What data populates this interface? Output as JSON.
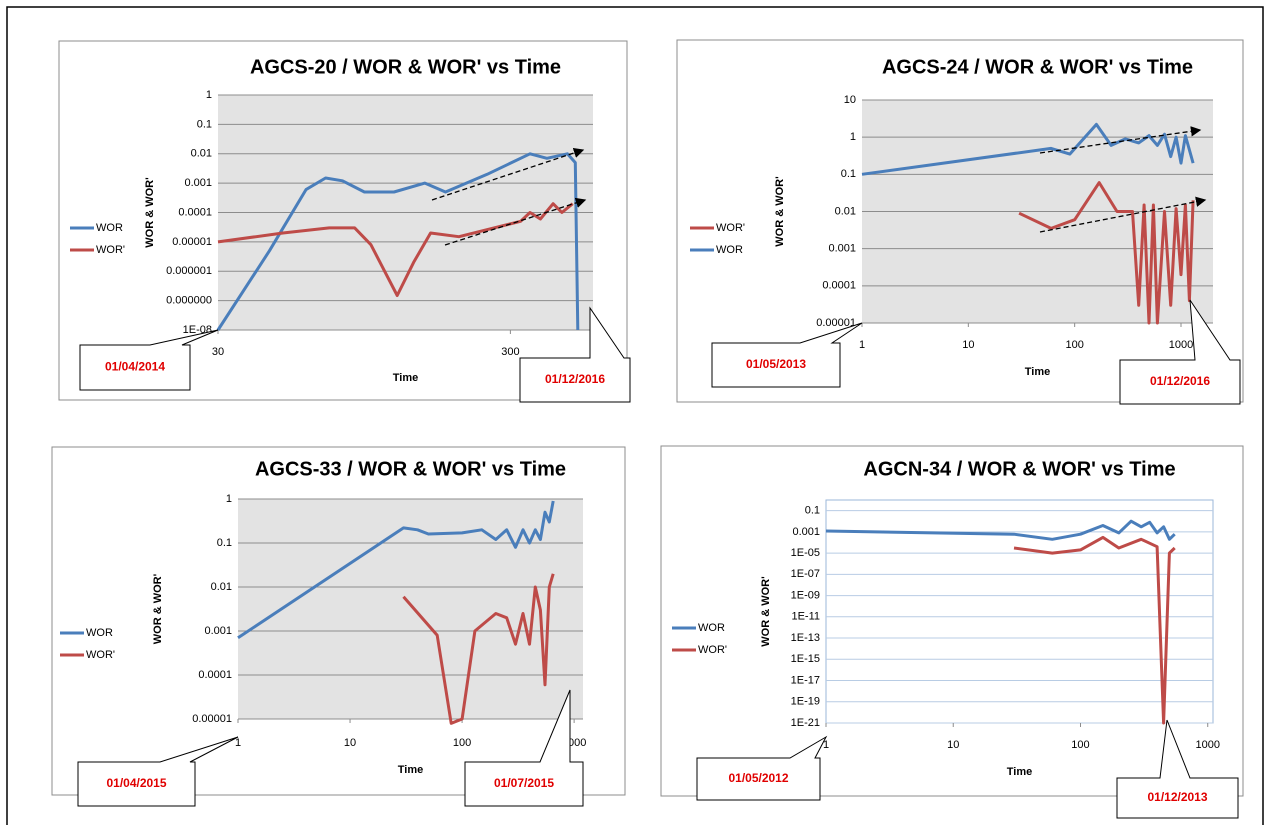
{
  "chart_data": [
    {
      "type": "line",
      "title": "AGCS-20 / WOR & WOR' vs Time",
      "x_label": "Time",
      "y_label": "WOR & WOR'",
      "xscale": "log",
      "yscale": "log",
      "grid": true,
      "xlim": [
        30,
        575
      ],
      "xticks": [
        30,
        300
      ],
      "ylim": [
        1e-08,
        1
      ],
      "yticks": [
        1,
        0.1,
        0.01,
        0.001,
        0.0001,
        1e-05,
        1e-06,
        {
          "value": 1e-07,
          "label": "0.000000"
        },
        {
          "value": 1e-08,
          "label": "1E-08"
        }
      ],
      "series": [
        {
          "name": "WOR",
          "color": "#4a7ebb",
          "x": [
            30,
            45,
            60,
            70,
            80,
            95,
            120,
            153,
            180,
            250,
            350,
            400,
            470,
            500,
            510
          ],
          "values": [
            1e-08,
            5e-06,
            0.0006,
            0.0015,
            0.0012,
            0.0005,
            0.0005,
            0.001,
            0.0005,
            0.002,
            0.01,
            0.007,
            0.01,
            0.005,
            1e-08
          ]
        },
        {
          "name": "WOR'",
          "color": "#be4b48",
          "x": [
            30,
            50,
            72,
            88,
            100,
            123,
            140,
            160,
            200,
            325,
            350,
            380,
            420,
            450,
            490
          ],
          "values": [
            1e-05,
            2e-05,
            3e-05,
            3e-05,
            8e-06,
            1.5e-07,
            2e-06,
            2e-05,
            1.5e-05,
            5e-05,
            0.0001,
            6e-05,
            0.0002,
            0.0001,
            0.0002
          ]
        }
      ],
      "annotations": [
        "01/04/2014",
        "01/12/2016"
      ]
    },
    {
      "type": "line",
      "title": "AGCS-24 / WOR & WOR' vs Time",
      "x_label": "Time",
      "y_label": "WOR & WOR'",
      "xscale": "log",
      "yscale": "log",
      "grid": true,
      "xlim": [
        1,
        2000
      ],
      "xticks": [
        1,
        10,
        100,
        1000
      ],
      "ylim": [
        1e-05,
        10
      ],
      "yticks": [
        10,
        1,
        0.1,
        0.01,
        0.001,
        0.0001,
        1e-05
      ],
      "series": [
        {
          "name": "WOR'",
          "color": "#be4b48",
          "x": [
            30,
            60,
            100,
            170,
            250,
            350,
            400,
            450,
            500,
            550,
            600,
            700,
            800,
            900,
            1000,
            1100,
            1200,
            1300
          ],
          "values": [
            0.009,
            0.0035,
            0.006,
            0.06,
            0.01,
            0.01,
            3e-05,
            0.015,
            1e-05,
            0.015,
            1e-05,
            0.01,
            3e-05,
            0.012,
            0.0002,
            0.015,
            4e-05,
            0.02
          ]
        },
        {
          "name": "WOR",
          "color": "#4a7ebb",
          "x": [
            1,
            60,
            90,
            160,
            220,
            300,
            400,
            500,
            600,
            700,
            800,
            900,
            1000,
            1100,
            1300
          ],
          "values": [
            0.1,
            0.5,
            0.35,
            2.2,
            0.6,
            0.9,
            0.7,
            1.1,
            0.6,
            1.2,
            0.3,
            1,
            0.2,
            1.1,
            0.2
          ]
        }
      ],
      "annotations": [
        "01/05/2013",
        "01/12/2016"
      ]
    },
    {
      "type": "line",
      "title": "AGCS-33 / WOR & WOR' vs Time",
      "x_label": "Time",
      "y_label": "WOR & WOR'",
      "xscale": "log",
      "yscale": "log",
      "grid": true,
      "xlim": [
        1,
        1200
      ],
      "xticks": [
        1,
        10,
        100,
        1000
      ],
      "ylim": [
        1e-05,
        1
      ],
      "yticks": [
        1,
        0.1,
        0.01,
        0.001,
        0.0001,
        1e-05
      ],
      "series": [
        {
          "name": "WOR",
          "color": "#4a7ebb",
          "x": [
            1,
            30,
            40,
            50,
            100,
            150,
            200,
            250,
            300,
            350,
            400,
            450,
            500,
            550,
            600,
            650
          ],
          "values": [
            0.0007,
            0.22,
            0.2,
            0.16,
            0.17,
            0.2,
            0.12,
            0.2,
            0.08,
            0.2,
            0.1,
            0.2,
            0.12,
            0.5,
            0.3,
            0.9
          ]
        },
        {
          "name": "WOR'",
          "color": "#be4b48",
          "x": [
            30,
            60,
            80,
            100,
            130,
            200,
            250,
            300,
            350,
            400,
            450,
            500,
            550,
            600,
            650
          ],
          "values": [
            0.006,
            0.0008,
            8e-06,
            1e-05,
            0.001,
            0.0025,
            0.002,
            0.0005,
            0.0025,
            0.0005,
            0.01,
            0.003,
            6e-05,
            0.01,
            0.02
          ]
        }
      ],
      "annotations": [
        "01/04/2015",
        "01/07/2015"
      ]
    },
    {
      "type": "line",
      "title": "AGCN-34 / WOR & WOR' vs Time",
      "x_label": "Time",
      "y_label": "WOR & WOR'",
      "xscale": "log",
      "yscale": "log",
      "grid": true,
      "xlim": [
        1,
        1100
      ],
      "xticks": [
        1,
        10,
        100,
        1000
      ],
      "ylim": [
        1e-21,
        1
      ],
      "yticks": [
        0.1,
        0.001,
        {
          "value": 1e-05,
          "label": "1E-05"
        },
        {
          "value": 1e-07,
          "label": "1E-07"
        },
        {
          "value": 1e-09,
          "label": "1E-09"
        },
        {
          "value": 1e-11,
          "label": "1E-11"
        },
        {
          "value": 1e-13,
          "label": "1E-13"
        },
        {
          "value": 1e-15,
          "label": "1E-15"
        },
        {
          "value": 1e-17,
          "label": "1E-17"
        },
        {
          "value": 1e-19,
          "label": "1E-19"
        },
        {
          "value": 1e-21,
          "label": "1E-21"
        }
      ],
      "series": [
        {
          "name": "WOR",
          "color": "#4a7ebb",
          "x": [
            1,
            30,
            60,
            100,
            150,
            200,
            250,
            300,
            350,
            400,
            450,
            500,
            550
          ],
          "values": [
            0.0012,
            0.0006,
            0.0002,
            0.0006,
            0.004,
            0.0008,
            0.01,
            0.003,
            0.008,
            0.0008,
            0.003,
            0.0002,
            0.0006
          ]
        },
        {
          "name": "WOR'",
          "color": "#be4b48",
          "x": [
            30,
            60,
            100,
            150,
            200,
            300,
            400,
            450,
            500,
            550
          ],
          "values": [
            3e-05,
            1e-05,
            2e-05,
            0.0003,
            3e-05,
            0.0002,
            4e-05,
            1e-21,
            1e-05,
            3e-05
          ]
        }
      ],
      "annotations": [
        "01/05/2012",
        "01/12/2013"
      ]
    }
  ]
}
